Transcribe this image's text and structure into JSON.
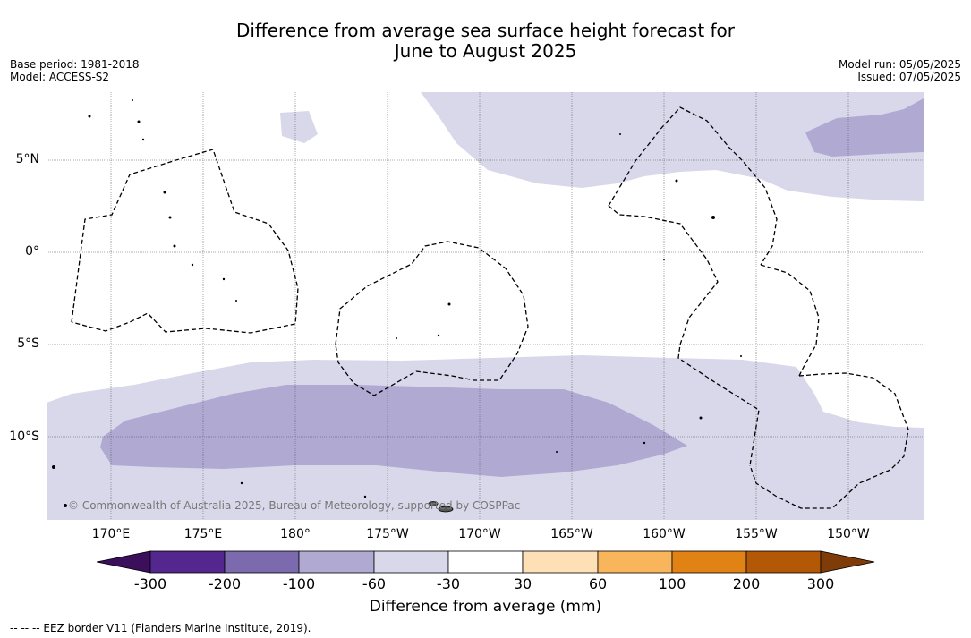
{
  "title": {
    "line1": "Difference from average sea surface height forecast for",
    "line2": "June to August 2025"
  },
  "meta": {
    "base_period": "Base period: 1981-2018",
    "model": "Model: ACCESS-S2",
    "model_run": "Model run: 05/05/2025",
    "issued": "Issued: 07/05/2025"
  },
  "latitude_labels": [
    "5°N",
    "0°",
    "5°S",
    "10°S"
  ],
  "longitude_labels": [
    "170°E",
    "175°E",
    "180°",
    "175°W",
    "170°W",
    "165°W",
    "160°W",
    "155°W",
    "150°W"
  ],
  "copyright": "© Commonwealth of Australia 2025, Bureau of Meteorology, supported by COSPPac",
  "colorbar": {
    "ticks": [
      "-300",
      "-200",
      "-100",
      "-60",
      "-30",
      "30",
      "60",
      "100",
      "200",
      "300"
    ],
    "label": "Difference from average (mm)",
    "colors": {
      "below_min": "#3b0f5c",
      "c1": "#54278f",
      "c2": "#7b6aad",
      "c3": "#b0a9d2",
      "c4": "#d9d8ea",
      "c5": "#ffffff",
      "c6": "#fde0b6",
      "c7": "#f9b55c",
      "c8": "#e08214",
      "c9": "#b35806",
      "above_max": "#7f3b08"
    }
  },
  "legend_note": "--  --  -- EEZ border V11 (Flanders Marine Institute, 2019)."
}
